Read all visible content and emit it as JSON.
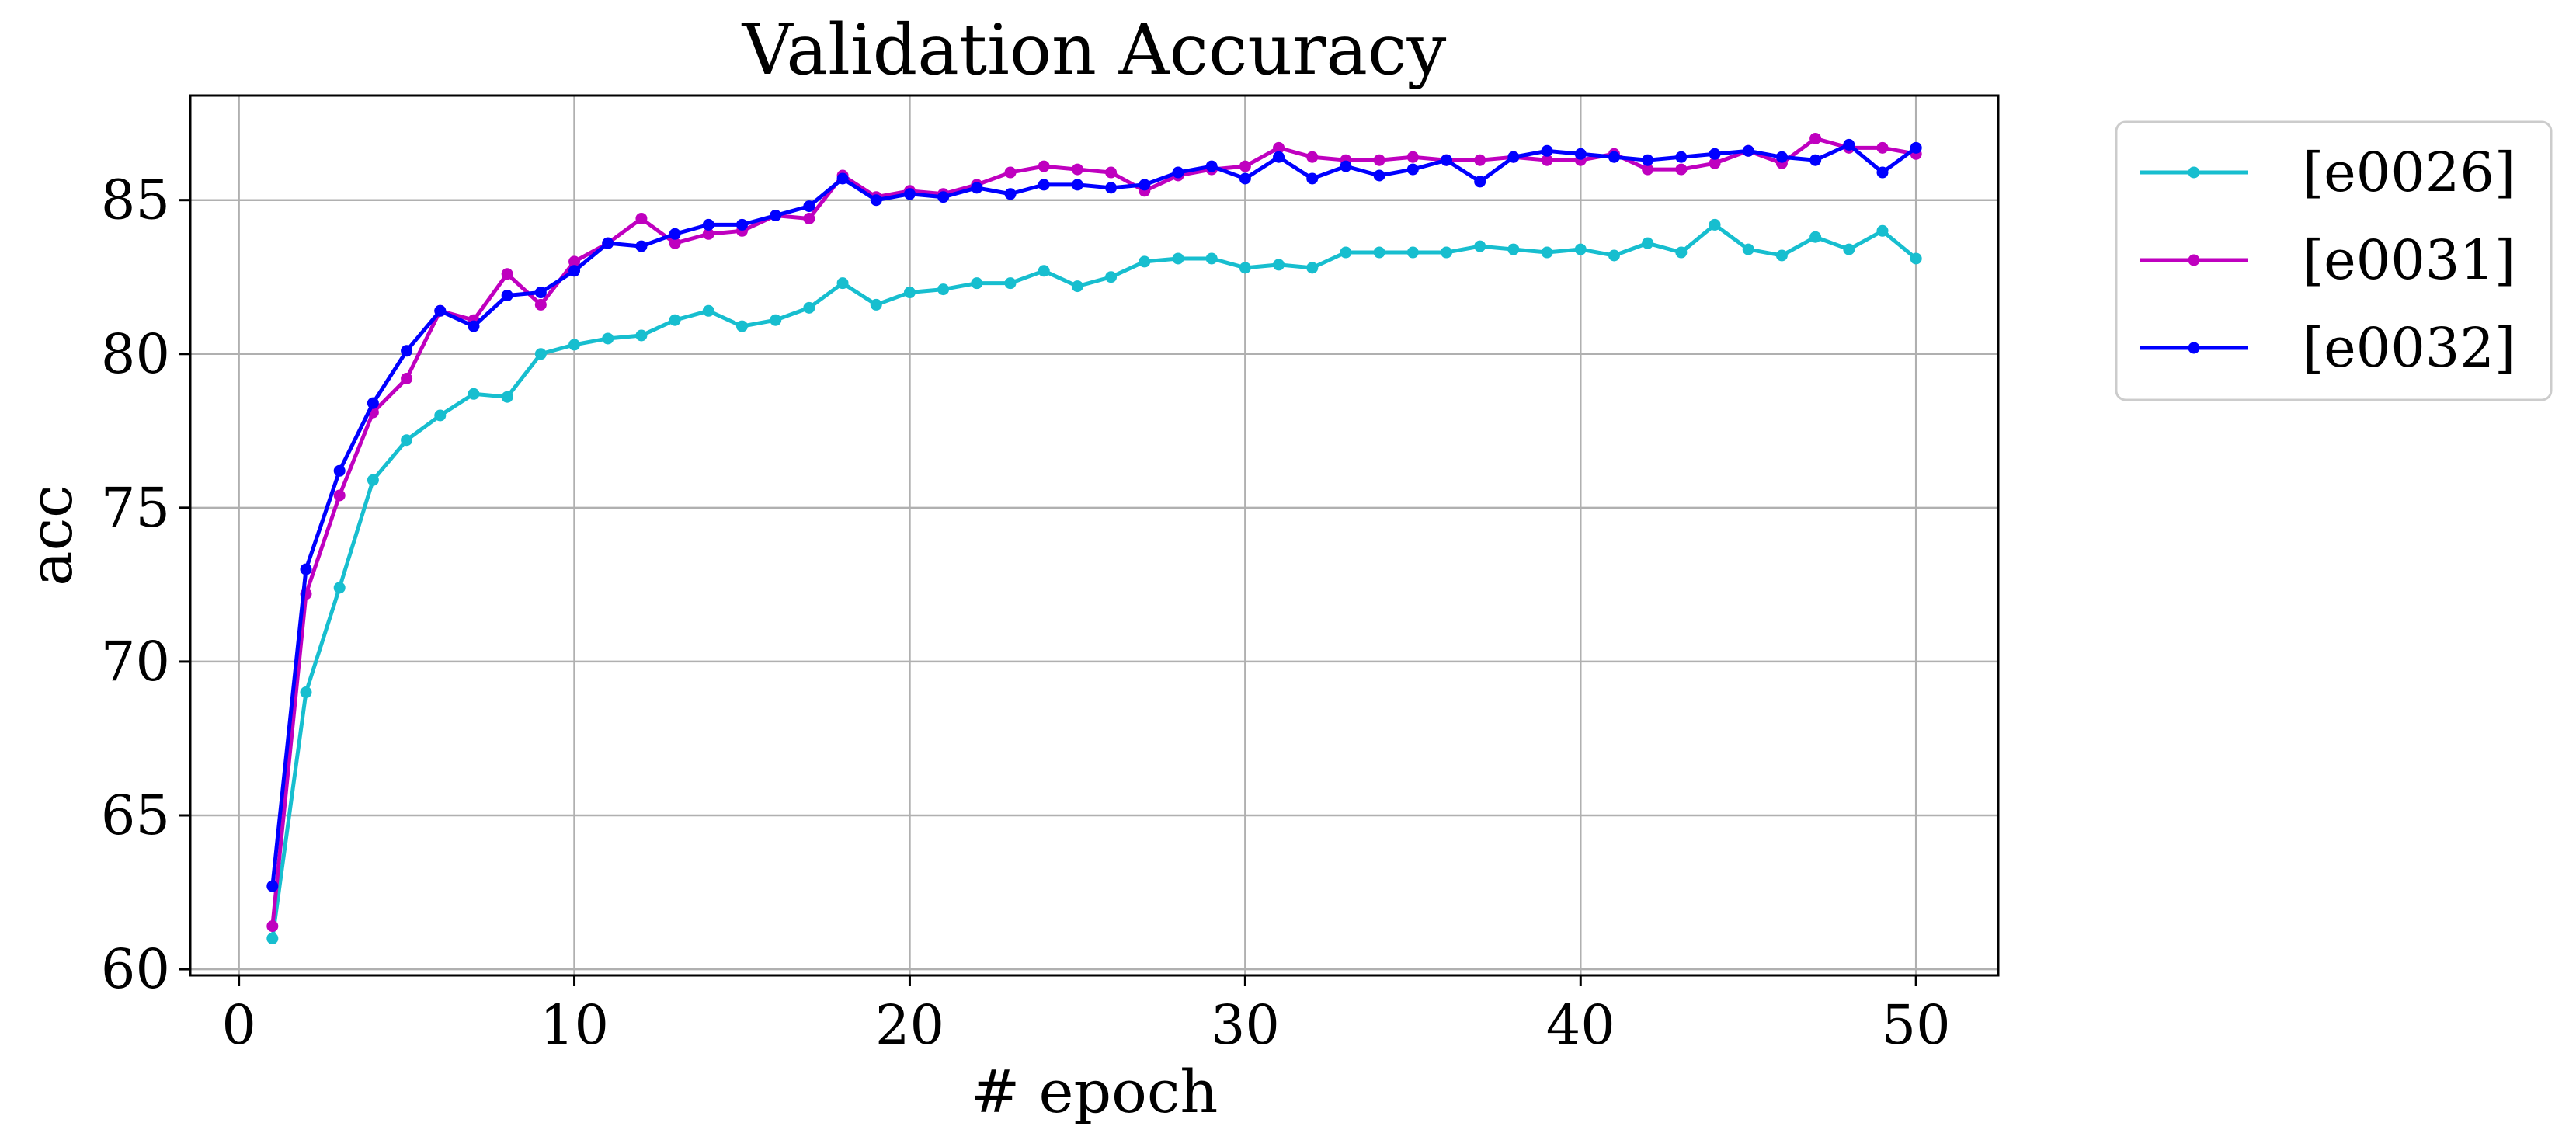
{
  "chart_data": {
    "type": "line",
    "title": "Validation Accuracy",
    "xlabel": "# epoch",
    "ylabel": "acc",
    "xlim": [
      -1.45,
      52.45
    ],
    "ylim": [
      59.8,
      88.4
    ],
    "xticks": [
      0,
      10,
      20,
      30,
      40,
      50
    ],
    "yticks": [
      60,
      65,
      70,
      75,
      80,
      85
    ],
    "grid": true,
    "legend_position": "outside-top-right",
    "x": [
      1,
      2,
      3,
      4,
      5,
      6,
      7,
      8,
      9,
      10,
      11,
      12,
      13,
      14,
      15,
      16,
      17,
      18,
      19,
      20,
      21,
      22,
      23,
      24,
      25,
      26,
      27,
      28,
      29,
      30,
      31,
      32,
      33,
      34,
      35,
      36,
      37,
      38,
      39,
      40,
      41,
      42,
      43,
      44,
      45,
      46,
      47,
      48,
      49,
      50
    ],
    "series": [
      {
        "name": "[e0026]",
        "color": "#17becf",
        "values": [
          61.0,
          69.0,
          72.4,
          75.9,
          77.2,
          78.0,
          78.7,
          78.6,
          80.0,
          80.3,
          80.5,
          80.6,
          81.1,
          81.4,
          80.9,
          81.1,
          81.5,
          82.3,
          81.6,
          82.0,
          82.1,
          82.3,
          82.3,
          82.7,
          82.2,
          82.5,
          83.0,
          83.1,
          83.1,
          82.8,
          82.9,
          82.8,
          83.3,
          83.3,
          83.3,
          83.3,
          83.5,
          83.4,
          83.3,
          83.4,
          83.2,
          83.6,
          83.3,
          84.2,
          83.4,
          83.2,
          83.8,
          83.4,
          84.0,
          83.1
        ]
      },
      {
        "name": "[e0031]",
        "color": "#bf00bf",
        "values": [
          61.4,
          72.2,
          75.4,
          78.1,
          79.2,
          81.4,
          81.1,
          82.6,
          81.6,
          83.0,
          83.6,
          84.4,
          83.6,
          83.9,
          84.0,
          84.5,
          84.4,
          85.8,
          85.1,
          85.3,
          85.2,
          85.5,
          85.9,
          86.1,
          86.0,
          85.9,
          85.3,
          85.8,
          86.0,
          86.1,
          86.7,
          86.4,
          86.3,
          86.3,
          86.4,
          86.3,
          86.3,
          86.4,
          86.3,
          86.3,
          86.5,
          86.0,
          86.0,
          86.2,
          86.6,
          86.2,
          87.0,
          86.7,
          86.7,
          86.5
        ]
      },
      {
        "name": "[e0032]",
        "color": "#0000ff",
        "values": [
          62.7,
          73.0,
          76.2,
          78.4,
          80.1,
          81.4,
          80.9,
          81.9,
          82.0,
          82.7,
          83.6,
          83.5,
          83.9,
          84.2,
          84.2,
          84.5,
          84.8,
          85.7,
          85.0,
          85.2,
          85.1,
          85.4,
          85.2,
          85.5,
          85.5,
          85.4,
          85.5,
          85.9,
          86.1,
          85.7,
          86.4,
          85.7,
          86.1,
          85.8,
          86.0,
          86.3,
          85.6,
          86.4,
          86.6,
          86.5,
          86.4,
          86.3,
          86.4,
          86.5,
          86.6,
          86.4,
          86.3,
          86.8,
          85.9,
          86.7
        ]
      }
    ]
  }
}
